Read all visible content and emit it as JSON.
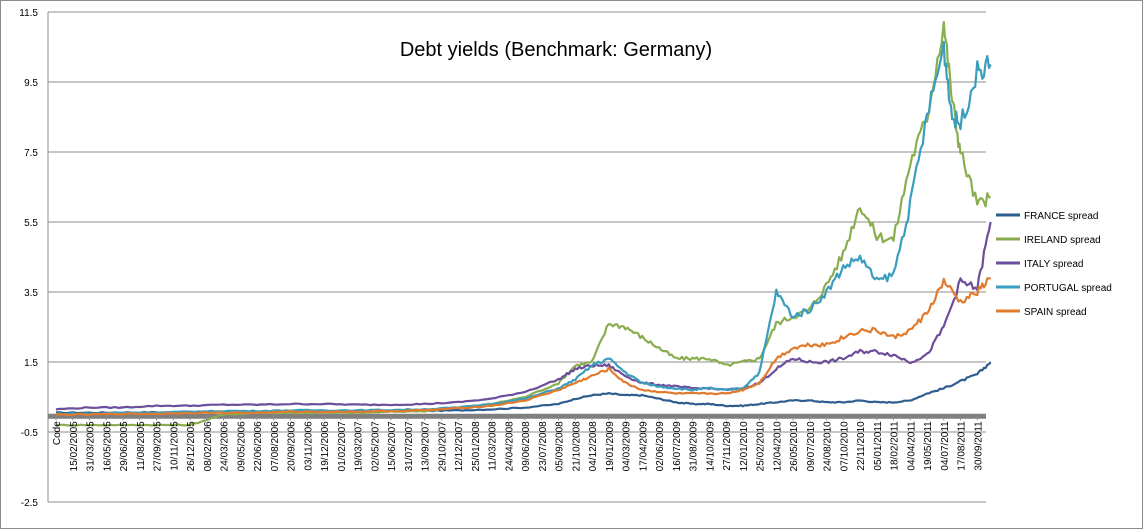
{
  "chart_data": {
    "type": "line",
    "title": "Debt yields (Benchmark: Germany)",
    "xlabel": "",
    "ylabel": "",
    "ylim": [
      -2.5,
      11.5
    ],
    "yticks": [
      "11.5",
      "9.5",
      "7.5",
      "5.5",
      "3.5",
      "1.5",
      "-0.5",
      "-2.5"
    ],
    "yvalues": [
      11.5,
      9.5,
      7.5,
      5.5,
      3.5,
      1.5,
      -0.5,
      -2.5
    ],
    "grid": "horizontal",
    "legend_position": "right",
    "xticks": [
      "Code",
      "15/02/2005",
      "31/03/2005",
      "16/05/2005",
      "29/06/2005",
      "11/08/2005",
      "27/09/2005",
      "10/11/2005",
      "26/12/2005",
      "08/02/2006",
      "24/03/2006",
      "09/05/2006",
      "22/06/2006",
      "07/08/2006",
      "20/09/2006",
      "03/11/2006",
      "19/12/2006",
      "01/02/2007",
      "19/03/2007",
      "02/05/2007",
      "15/06/2007",
      "31/07/2007",
      "13/09/2007",
      "29/10/2007",
      "12/12/2007",
      "25/01/2008",
      "11/03/2008",
      "24/04/2008",
      "09/06/2008",
      "23/07/2008",
      "05/09/2008",
      "21/10/2008",
      "04/12/2008",
      "19/01/2009",
      "04/03/2009",
      "17/04/2009",
      "02/06/2009",
      "16/07/2009",
      "31/08/2009",
      "14/10/2009",
      "27/11/2009",
      "12/01/2010",
      "25/02/2010",
      "12/04/2010",
      "26/05/2010",
      "09/07/2010",
      "24/08/2010",
      "07/10/2010",
      "22/11/2010",
      "05/01/2011",
      "18/02/2011",
      "04/04/2011",
      "19/05/2011",
      "04/07/2011",
      "17/08/2011",
      "30/09/2011"
    ],
    "series": [
      {
        "name": "FRANCE spread",
        "color": "#2e5e8e",
        "points": [
          [
            0,
            0.05
          ],
          [
            2,
            0.05
          ],
          [
            4,
            0.06
          ],
          [
            6,
            0.06
          ],
          [
            8,
            0.07
          ],
          [
            10,
            0.07
          ],
          [
            12,
            0.07
          ],
          [
            14,
            0.08
          ],
          [
            16,
            0.08
          ],
          [
            18,
            0.09
          ],
          [
            20,
            0.09
          ],
          [
            22,
            0.1
          ],
          [
            24,
            0.12
          ],
          [
            26,
            0.15
          ],
          [
            28,
            0.2
          ],
          [
            30,
            0.3
          ],
          [
            31,
            0.45
          ],
          [
            32,
            0.55
          ],
          [
            33,
            0.6
          ],
          [
            34,
            0.55
          ],
          [
            35,
            0.55
          ],
          [
            36,
            0.45
          ],
          [
            37,
            0.35
          ],
          [
            38,
            0.3
          ],
          [
            39,
            0.3
          ],
          [
            40,
            0.25
          ],
          [
            41,
            0.25
          ],
          [
            42,
            0.3
          ],
          [
            43,
            0.35
          ],
          [
            44,
            0.4
          ],
          [
            45,
            0.4
          ],
          [
            46,
            0.35
          ],
          [
            47,
            0.35
          ],
          [
            48,
            0.4
          ],
          [
            49,
            0.35
          ],
          [
            50,
            0.35
          ],
          [
            51,
            0.4
          ],
          [
            52,
            0.6
          ],
          [
            53,
            0.75
          ],
          [
            54,
            0.95
          ],
          [
            55,
            1.15
          ],
          [
            55.8,
            1.5
          ]
        ]
      },
      {
        "name": "IRELAND  spread",
        "color": "#8aad4f",
        "points": [
          [
            0,
            -0.3
          ],
          [
            2,
            -0.3
          ],
          [
            4,
            -0.3
          ],
          [
            6,
            -0.3
          ],
          [
            8,
            -0.3
          ],
          [
            10,
            0.0
          ],
          [
            12,
            0.05
          ],
          [
            14,
            0.05
          ],
          [
            16,
            0.05
          ],
          [
            18,
            0.05
          ],
          [
            20,
            0.08
          ],
          [
            22,
            0.1
          ],
          [
            24,
            0.2
          ],
          [
            26,
            0.3
          ],
          [
            28,
            0.5
          ],
          [
            30,
            0.9
          ],
          [
            31,
            1.4
          ],
          [
            32,
            1.5
          ],
          [
            33,
            2.6
          ],
          [
            34,
            2.5
          ],
          [
            35,
            2.2
          ],
          [
            36,
            1.9
          ],
          [
            37,
            1.6
          ],
          [
            38,
            1.6
          ],
          [
            39,
            1.6
          ],
          [
            40,
            1.4
          ],
          [
            41,
            1.5
          ],
          [
            42,
            1.6
          ],
          [
            43,
            2.6
          ],
          [
            44,
            2.8
          ],
          [
            45,
            3.0
          ],
          [
            46,
            3.7
          ],
          [
            47,
            4.6
          ],
          [
            48,
            6.0
          ],
          [
            49,
            5.1
          ],
          [
            50,
            5.0
          ],
          [
            51,
            7.2
          ],
          [
            52,
            8.5
          ],
          [
            53,
            11.2
          ],
          [
            53.5,
            9.0
          ],
          [
            54,
            7.5
          ],
          [
            55,
            6.0
          ],
          [
            55.8,
            6.2
          ]
        ]
      },
      {
        "name": "ITALY spread",
        "color": "#6d4e9a",
        "points": [
          [
            0,
            0.15
          ],
          [
            2,
            0.2
          ],
          [
            4,
            0.2
          ],
          [
            6,
            0.25
          ],
          [
            8,
            0.25
          ],
          [
            10,
            0.28
          ],
          [
            12,
            0.28
          ],
          [
            14,
            0.3
          ],
          [
            16,
            0.3
          ],
          [
            18,
            0.28
          ],
          [
            20,
            0.28
          ],
          [
            22,
            0.3
          ],
          [
            24,
            0.35
          ],
          [
            26,
            0.45
          ],
          [
            28,
            0.65
          ],
          [
            30,
            1.0
          ],
          [
            31,
            1.3
          ],
          [
            32,
            1.4
          ],
          [
            33,
            1.4
          ],
          [
            34,
            1.1
          ],
          [
            35,
            0.9
          ],
          [
            36,
            0.85
          ],
          [
            37,
            0.8
          ],
          [
            38,
            0.75
          ],
          [
            39,
            0.75
          ],
          [
            40,
            0.7
          ],
          [
            41,
            0.75
          ],
          [
            42,
            0.9
          ],
          [
            43,
            1.3
          ],
          [
            44,
            1.6
          ],
          [
            45,
            1.5
          ],
          [
            46,
            1.5
          ],
          [
            47,
            1.6
          ],
          [
            48,
            1.8
          ],
          [
            49,
            1.8
          ],
          [
            50,
            1.7
          ],
          [
            51,
            1.5
          ],
          [
            52,
            1.7
          ],
          [
            53,
            2.5
          ],
          [
            54,
            3.8
          ],
          [
            55,
            3.6
          ],
          [
            55.8,
            5.5
          ]
        ]
      },
      {
        "name": "PORTUGAL  spread",
        "color": "#3a9dbd",
        "points": [
          [
            0,
            0.02
          ],
          [
            2,
            0.02
          ],
          [
            4,
            0.05
          ],
          [
            6,
            0.05
          ],
          [
            8,
            0.08
          ],
          [
            10,
            0.1
          ],
          [
            12,
            0.1
          ],
          [
            14,
            0.12
          ],
          [
            16,
            0.12
          ],
          [
            18,
            0.12
          ],
          [
            20,
            0.13
          ],
          [
            22,
            0.15
          ],
          [
            24,
            0.2
          ],
          [
            26,
            0.3
          ],
          [
            28,
            0.45
          ],
          [
            30,
            0.75
          ],
          [
            31,
            1.0
          ],
          [
            32,
            1.4
          ],
          [
            33,
            1.6
          ],
          [
            34,
            1.2
          ],
          [
            35,
            0.9
          ],
          [
            36,
            0.8
          ],
          [
            37,
            0.75
          ],
          [
            38,
            0.7
          ],
          [
            39,
            0.75
          ],
          [
            40,
            0.7
          ],
          [
            41,
            0.75
          ],
          [
            42,
            1.2
          ],
          [
            43,
            3.5
          ],
          [
            44,
            2.8
          ],
          [
            45,
            3.0
          ],
          [
            46,
            3.5
          ],
          [
            47,
            4.2
          ],
          [
            48,
            4.5
          ],
          [
            49,
            3.8
          ],
          [
            50,
            4.0
          ],
          [
            51,
            6.0
          ],
          [
            52,
            8.5
          ],
          [
            53,
            10.5
          ],
          [
            53.5,
            8.5
          ],
          [
            54,
            8.3
          ],
          [
            55,
            9.8
          ],
          [
            55.8,
            10.0
          ]
        ]
      },
      {
        "name": "SPAIN spread",
        "color": "#e07b2e",
        "points": [
          [
            0,
            0.0
          ],
          [
            2,
            0.0
          ],
          [
            4,
            0.02
          ],
          [
            6,
            0.02
          ],
          [
            8,
            0.05
          ],
          [
            10,
            0.05
          ],
          [
            12,
            0.05
          ],
          [
            14,
            0.08
          ],
          [
            16,
            0.08
          ],
          [
            18,
            0.08
          ],
          [
            20,
            0.1
          ],
          [
            22,
            0.12
          ],
          [
            24,
            0.18
          ],
          [
            26,
            0.25
          ],
          [
            28,
            0.4
          ],
          [
            30,
            0.7
          ],
          [
            31,
            0.9
          ],
          [
            32,
            1.1
          ],
          [
            33,
            1.3
          ],
          [
            34,
            0.9
          ],
          [
            35,
            0.7
          ],
          [
            36,
            0.65
          ],
          [
            37,
            0.6
          ],
          [
            38,
            0.6
          ],
          [
            39,
            0.6
          ],
          [
            40,
            0.6
          ],
          [
            41,
            0.7
          ],
          [
            42,
            0.9
          ],
          [
            43,
            1.6
          ],
          [
            44,
            1.9
          ],
          [
            45,
            2.0
          ],
          [
            46,
            2.0
          ],
          [
            47,
            2.2
          ],
          [
            48,
            2.4
          ],
          [
            49,
            2.4
          ],
          [
            50,
            2.2
          ],
          [
            51,
            2.4
          ],
          [
            52,
            2.9
          ],
          [
            53,
            3.8
          ],
          [
            54,
            3.2
          ],
          [
            55,
            3.5
          ],
          [
            55.8,
            3.9
          ]
        ]
      }
    ],
    "baseline": {
      "value": -0.05,
      "color": "#7f7f7f"
    }
  }
}
